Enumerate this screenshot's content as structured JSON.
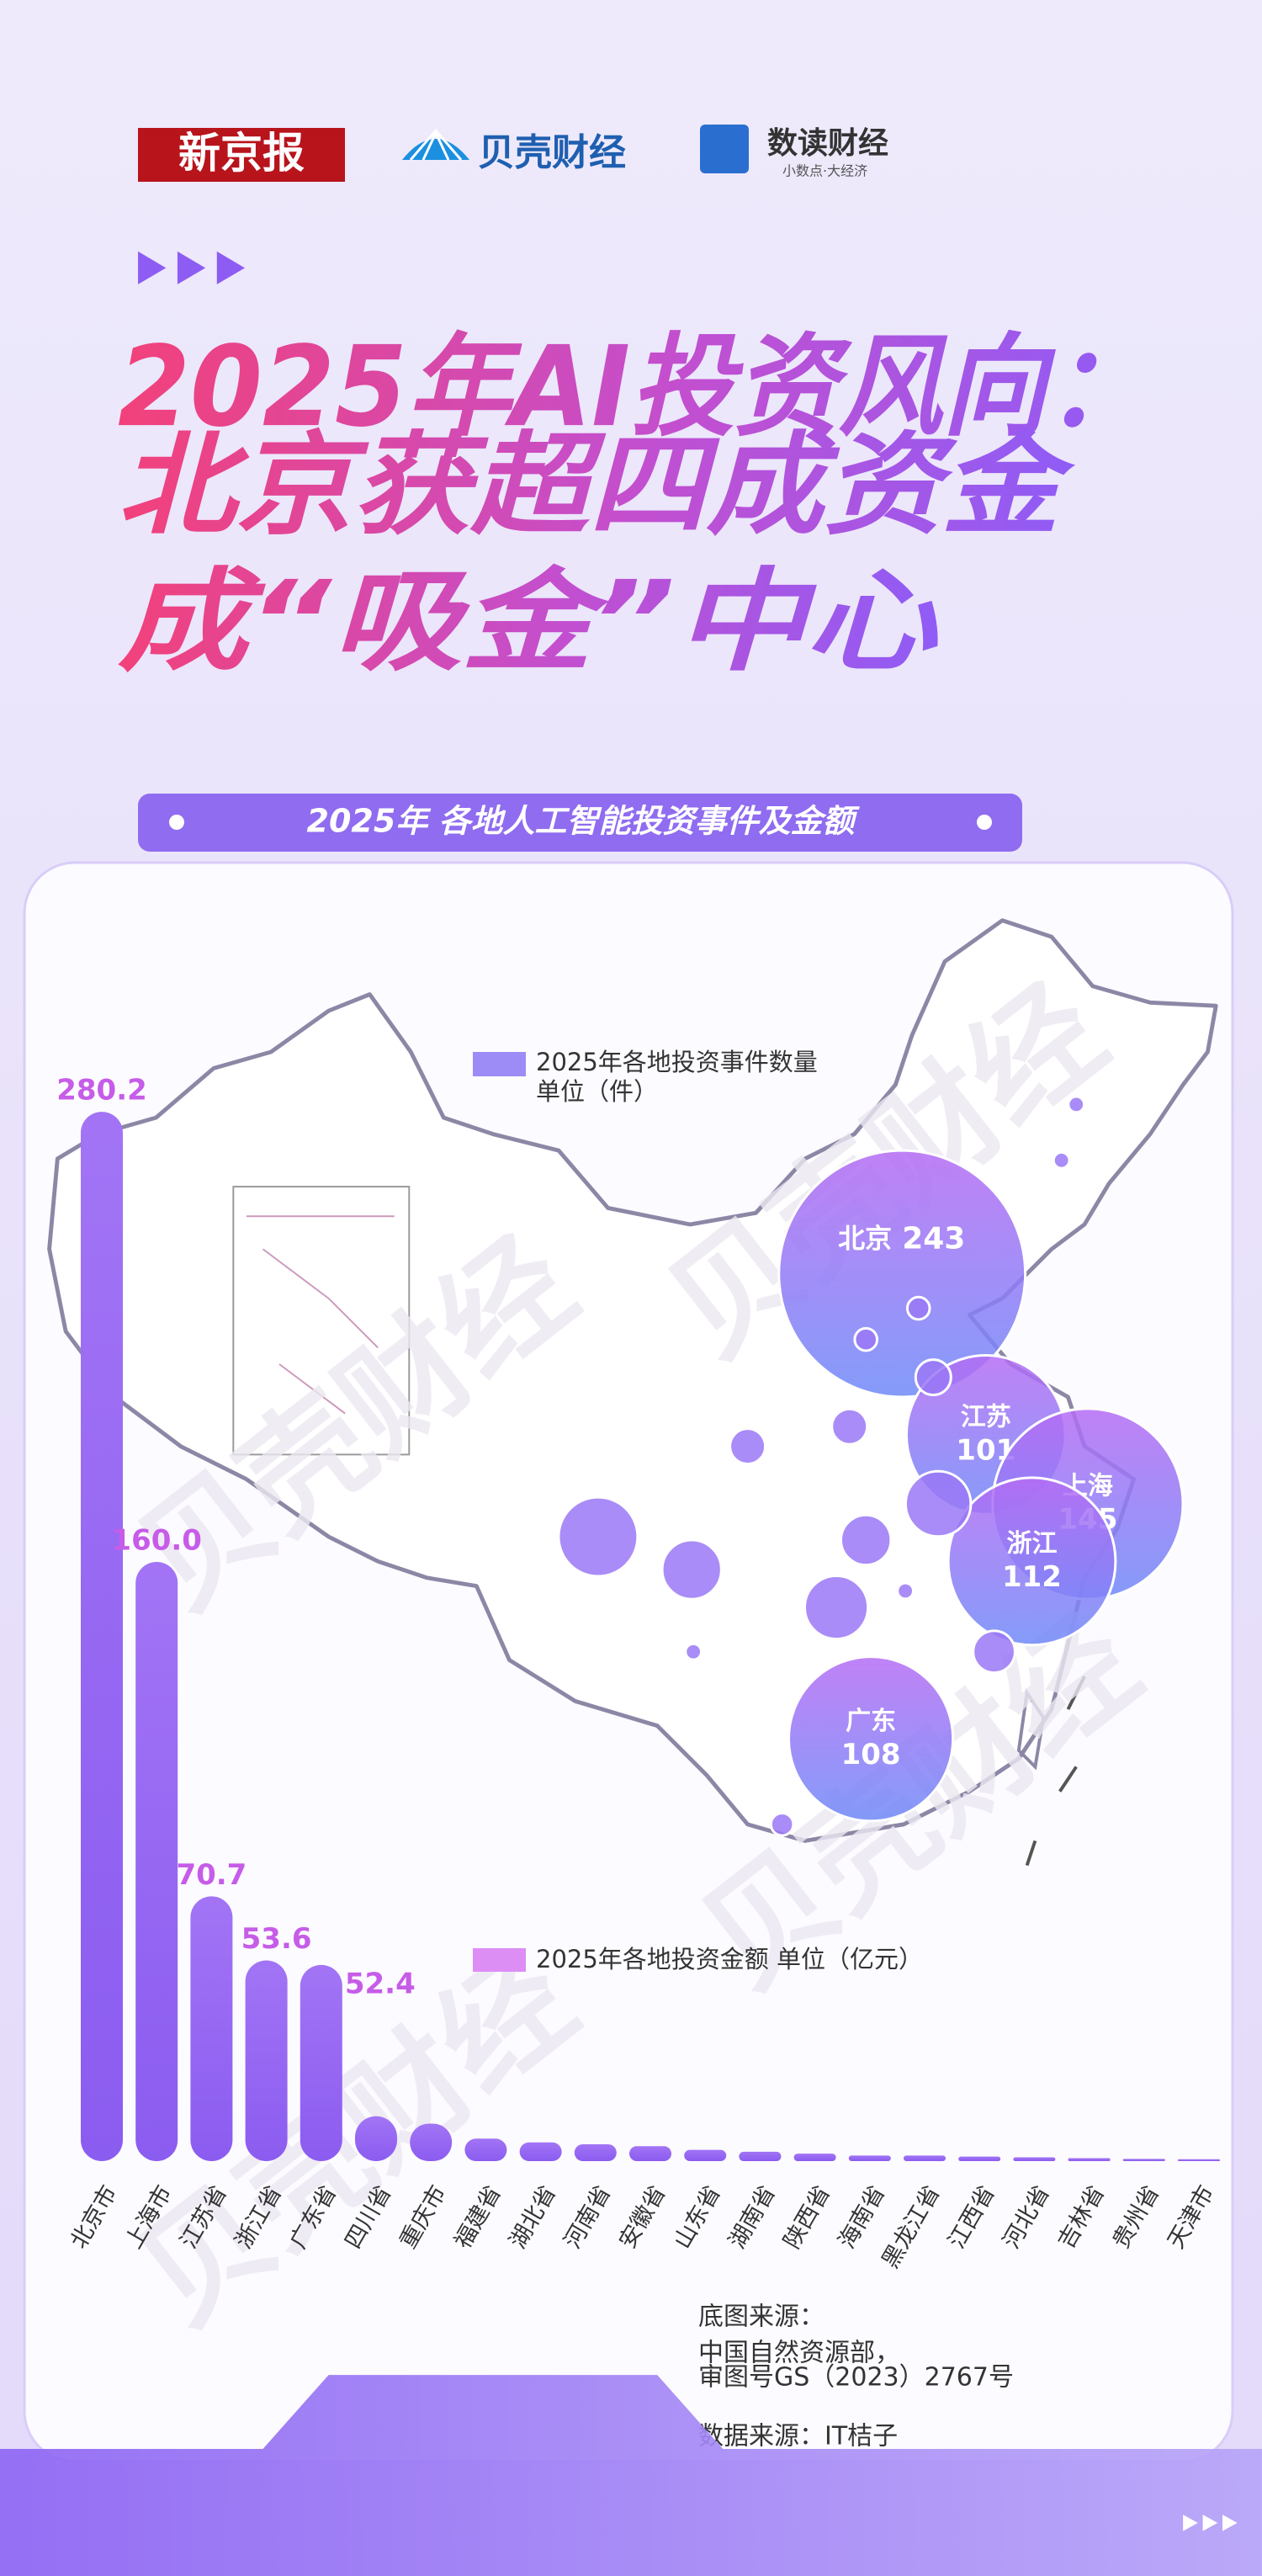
{
  "logos": {
    "xinjingbao": "新京报",
    "beike": "贝壳财经",
    "shudu": "数读财经",
    "shudu_slogan": "小数点·大经济"
  },
  "title": [
    "2025年AI投资风向：",
    "北京获超四成资金",
    "成“吸金”中心"
  ],
  "banner": "2025年 各地人工智能投资事件及金额",
  "chart_data": [
    {
      "type": "bar",
      "legend": "2025年各地投资金额 单位（亿元）",
      "categories": [
        "北京市",
        "上海市",
        "江苏省",
        "浙江省",
        "广东省",
        "四川省",
        "重庆市",
        "福建省",
        "湖北省",
        "河南省",
        "安徽省",
        "山东省",
        "湖南省",
        "陕西省",
        "海南省",
        "黑龙江省",
        "江西省",
        "河北省",
        "吉林省",
        "贵州省",
        "天津市"
      ],
      "values": [
        280.2,
        160,
        70.7,
        53.6,
        52.4,
        12,
        10,
        6,
        5,
        4.5,
        4,
        3,
        2.5,
        2,
        1.5,
        1.5,
        1.2,
        1,
        0.8,
        0.6,
        0.5
      ],
      "value_labels": [
        "280.2",
        "160.0",
        "70.7",
        "53.6",
        "52.4",
        null,
        null,
        null,
        null,
        null,
        null,
        null,
        null,
        null,
        null,
        null,
        null,
        null,
        null,
        null,
        null
      ],
      "color": "#9c6cf3",
      "label_color": "#c65ce8",
      "legend_color": "#dd8ef5"
    },
    {
      "type": "bubble",
      "legend": [
        "2025年各地投资事件数量",
        "单位（件）"
      ],
      "categories": [
        "北京",
        "江苏",
        "上海",
        "浙江",
        "广东",
        null,
        null,
        null,
        null,
        null,
        null,
        null,
        null,
        null,
        null,
        null,
        null,
        null,
        null,
        null,
        null
      ],
      "values": [
        243,
        101,
        145,
        112,
        108,
        25,
        14,
        5,
        5,
        10,
        16,
        17,
        5,
        2,
        2,
        7,
        1,
        1,
        2,
        1,
        1
      ],
      "color": "#9a78f6",
      "legend_color": "#9d8cf6"
    }
  ],
  "watermark": "贝壳财经",
  "sources": [
    "底图来源：",
    "中国自然资源部，",
    "审图号GS（2023）2767号",
    "数据来源：IT桔子"
  ]
}
